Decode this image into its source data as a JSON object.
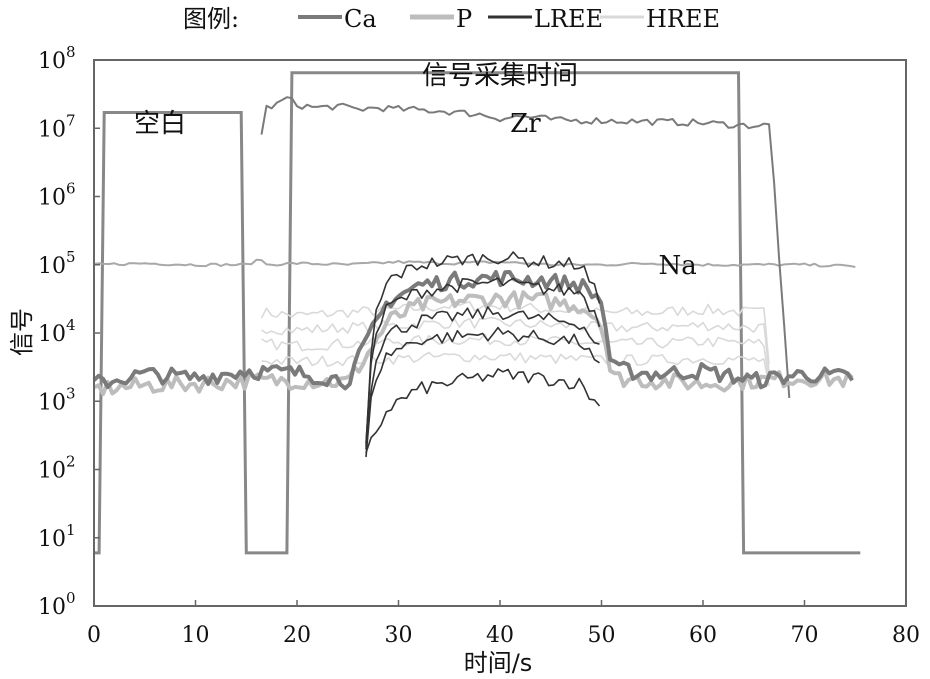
{
  "chart_data": {
    "type": "line",
    "y_scale": "log",
    "xlabel": "时间/s",
    "ylabel": "信号",
    "xlim": [
      0,
      80
    ],
    "ylim": [
      1,
      100000000
    ],
    "x_ticks": [
      "0",
      "10",
      "20",
      "30",
      "40",
      "50",
      "60",
      "70",
      "80"
    ],
    "y_ticks": [
      {
        "base": "10",
        "exp": "0"
      },
      {
        "base": "10",
        "exp": "1"
      },
      {
        "base": "10",
        "exp": "2"
      },
      {
        "base": "10",
        "exp": "3"
      },
      {
        "base": "10",
        "exp": "4"
      },
      {
        "base": "10",
        "exp": "5"
      },
      {
        "base": "10",
        "exp": "6"
      },
      {
        "base": "10",
        "exp": "7"
      },
      {
        "base": "10",
        "exp": "8"
      }
    ],
    "grid": false,
    "legend": {
      "title": "图例:",
      "position": "top",
      "entries": [
        {
          "name": "Ca",
          "color": "#7a7a7a"
        },
        {
          "name": "P",
          "color": "#bdbdbd"
        },
        {
          "name": "LREE",
          "color": "#333333"
        },
        {
          "name": "HREE",
          "color": "#d9d9d9"
        }
      ]
    },
    "annotations": [
      {
        "text": "空白",
        "x": 6.5,
        "y": 12000000
      },
      {
        "text": "信号采集时间",
        "x": 40,
        "y": 60000000
      },
      {
        "text": "Zr",
        "x": 42.5,
        "y": 12000000
      },
      {
        "text": "Na",
        "x": 57.5,
        "y": 100000
      }
    ],
    "windows": [
      {
        "name": "blank window",
        "x": [
          0,
          0.5,
          1,
          14.5,
          15,
          19,
          19.5,
          63.5,
          64,
          75.5
        ],
        "y": [
          6,
          6,
          17000000,
          17000000,
          6,
          6,
          65000000,
          65000000,
          6,
          6
        ]
      }
    ],
    "series": [
      {
        "name": "Zr",
        "color": "#7a7a7a",
        "x": [
          16.5,
          17,
          18,
          19,
          20,
          22,
          24,
          26,
          28,
          30,
          34,
          38,
          40,
          42,
          44,
          46,
          50,
          55,
          60,
          64,
          66,
          66.6,
          68.5
        ],
        "y": [
          8000000,
          20000000,
          22000000,
          28000000,
          22000000,
          20000000,
          21000000,
          19000000,
          20000000,
          19000000,
          18000000,
          16000000,
          14000000,
          15000000,
          14000000,
          13000000,
          13000000,
          12500000,
          12000000,
          11000000,
          11000000,
          11000000,
          1000
        ]
      },
      {
        "name": "Na",
        "color": "#a8a8a8",
        "x": [
          0,
          5,
          10,
          15,
          16.5,
          17,
          20,
          25,
          30,
          35,
          40,
          45,
          50,
          55,
          60,
          65,
          70,
          75
        ],
        "y": [
          100000,
          105000,
          100000,
          100000,
          120000,
          100000,
          105000,
          100000,
          110000,
          105000,
          110000,
          100000,
          100000,
          105000,
          100000,
          100000,
          100000,
          95000
        ]
      },
      {
        "name": "Ca",
        "color": "#7a7a7a",
        "x": [
          0,
          5,
          10,
          15,
          20,
          25,
          27,
          29,
          32,
          36,
          40,
          44,
          48,
          50,
          51,
          55,
          60,
          65,
          70,
          75
        ],
        "y": [
          1800,
          2500,
          2200,
          2800,
          2600,
          2000,
          8000,
          30000,
          50000,
          60000,
          65000,
          60000,
          50000,
          30000,
          3000,
          2500,
          2800,
          2000,
          2500,
          2200
        ]
      },
      {
        "name": "P",
        "color": "#bdbdbd",
        "x": [
          0,
          5,
          10,
          15,
          20,
          25,
          27,
          29,
          32,
          36,
          40,
          44,
          48,
          50,
          51,
          55,
          60,
          65,
          70,
          75
        ],
        "y": [
          1500,
          1700,
          1800,
          2000,
          2000,
          1900,
          5000,
          15000,
          25000,
          30000,
          32000,
          30000,
          25000,
          15000,
          2200,
          2000,
          1800,
          2000,
          2200,
          2000
        ]
      },
      {
        "name": "LREE",
        "color": "#333333",
        "x": [
          26.8,
          27.5,
          29,
          32,
          36,
          40,
          44,
          48,
          49.8,
          50.2
        ],
        "y": [
          200,
          15000,
          60000,
          100000,
          120000,
          130000,
          110000,
          100000,
          30000,
          400
        ]
      },
      {
        "name": "LREE",
        "color": "#333333",
        "x": [
          26.8,
          27.5,
          29,
          32,
          36,
          40,
          44,
          48,
          49.8,
          50.2
        ],
        "y": [
          300,
          8000,
          25000,
          40000,
          50000,
          55000,
          45000,
          40000,
          15000,
          300
        ]
      },
      {
        "name": "LREE",
        "color": "#333333",
        "x": [
          26.8,
          27.5,
          29,
          32,
          36,
          40,
          44,
          48,
          49.8,
          50.2
        ],
        "y": [
          200,
          4000,
          10000,
          15000,
          18000,
          20000,
          16000,
          14000,
          6000,
          200
        ]
      },
      {
        "name": "LREE",
        "color": "#333333",
        "x": [
          26.8,
          27.5,
          29,
          32,
          36,
          40,
          44,
          48,
          49.8,
          50.2
        ],
        "y": [
          150,
          2000,
          5000,
          8000,
          9000,
          10000,
          8500,
          7500,
          3000,
          150
        ]
      },
      {
        "name": "LREE",
        "color": "#333333",
        "x": [
          26.8,
          27.5,
          29,
          32,
          36,
          40,
          44,
          48,
          49.8,
          50.2
        ],
        "y": [
          150,
          300,
          800,
          1500,
          2000,
          2500,
          2200,
          1800,
          800,
          150
        ]
      },
      {
        "name": "HREE",
        "color": "#d9d9d9",
        "x": [
          16.5,
          20,
          25,
          30,
          35,
          40,
          45,
          50,
          55,
          60,
          65,
          66.3,
          66.8
        ],
        "y": [
          20000,
          18000,
          20000,
          22000,
          25000,
          25000,
          22000,
          20000,
          20000,
          22000,
          20000,
          20000,
          200
        ]
      },
      {
        "name": "HREE",
        "color": "#d9d9d9",
        "x": [
          16.5,
          20,
          25,
          30,
          35,
          40,
          45,
          50,
          55,
          60,
          65,
          66.3,
          66.8
        ],
        "y": [
          12000,
          11000,
          12000,
          13000,
          14000,
          14000,
          13000,
          12000,
          12000,
          13000,
          12000,
          12000,
          200
        ]
      },
      {
        "name": "HREE",
        "color": "#d9d9d9",
        "x": [
          16.5,
          20,
          25,
          30,
          35,
          40,
          45,
          50,
          55,
          60,
          65,
          66.3,
          66.8
        ],
        "y": [
          7000,
          6500,
          7000,
          7500,
          8000,
          8000,
          7500,
          7000,
          7000,
          7500,
          7000,
          7000,
          300
        ]
      },
      {
        "name": "HREE",
        "color": "#d9d9d9",
        "x": [
          16.5,
          20,
          25,
          30,
          35,
          40,
          45,
          50,
          55,
          60,
          65,
          66.3,
          66.8
        ],
        "y": [
          4000,
          3800,
          4000,
          4200,
          4500,
          4500,
          4200,
          4000,
          4000,
          4200,
          4000,
          4000,
          300
        ]
      }
    ]
  }
}
